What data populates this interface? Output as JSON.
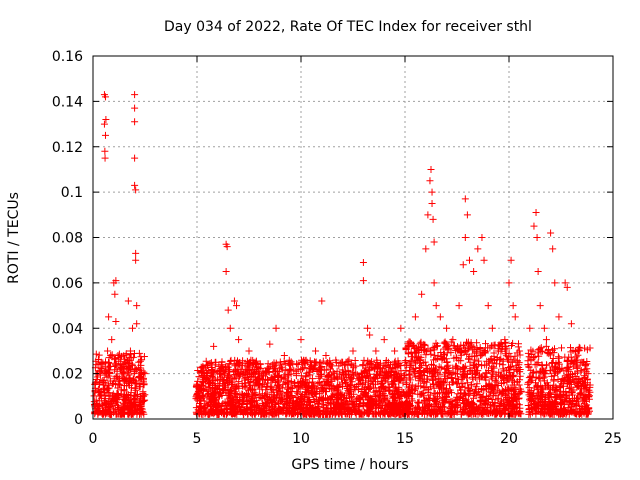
{
  "chart_data": {
    "type": "scatter",
    "title": "Day 034 of 2022, Rate Of TEC Index for receiver sthl",
    "xlabel": "GPS time / hours",
    "ylabel": "ROTI / TECUs",
    "xlim": [
      0,
      25
    ],
    "ylim": [
      0,
      0.16
    ],
    "xticks": [
      0,
      5,
      10,
      15,
      20,
      25
    ],
    "xtick_labels": [
      "0",
      "5",
      "10",
      "15",
      "20",
      "25"
    ],
    "yticks": [
      0,
      0.02,
      0.04,
      0.06,
      0.08,
      0.1,
      0.12,
      0.14,
      0.16
    ],
    "ytick_labels": [
      "0",
      "0.02",
      "0.04",
      "0.06",
      "0.08",
      "0.1",
      "0.12",
      "0.14",
      "0.16"
    ],
    "grid": true,
    "marker": "plus",
    "series": [
      {
        "name": "ROTI",
        "color": "#ff0000",
        "points": [
          [
            0.1,
            0.012
          ],
          [
            0.2,
            0.02
          ],
          [
            0.3,
            0.008
          ],
          [
            0.4,
            0.025
          ],
          [
            0.5,
            0.015
          ],
          [
            0.55,
            0.143
          ],
          [
            0.55,
            0.13
          ],
          [
            0.57,
            0.118
          ],
          [
            0.6,
            0.125
          ],
          [
            0.6,
            0.142
          ],
          [
            0.62,
            0.132
          ],
          [
            0.58,
            0.115
          ],
          [
            0.7,
            0.03
          ],
          [
            0.75,
            0.045
          ],
          [
            0.8,
            0.02
          ],
          [
            0.9,
            0.035
          ],
          [
            1.0,
            0.06
          ],
          [
            1.05,
            0.055
          ],
          [
            1.1,
            0.061
          ],
          [
            1.1,
            0.043
          ],
          [
            1.2,
            0.028
          ],
          [
            1.3,
            0.015
          ],
          [
            1.4,
            0.022
          ],
          [
            1.5,
            0.01
          ],
          [
            1.6,
            0.018
          ],
          [
            1.7,
            0.052
          ],
          [
            1.8,
            0.03
          ],
          [
            1.9,
            0.04
          ],
          [
            2.0,
            0.143
          ],
          [
            2.0,
            0.137
          ],
          [
            2.0,
            0.131
          ],
          [
            2.0,
            0.115
          ],
          [
            2.0,
            0.103
          ],
          [
            2.05,
            0.101
          ],
          [
            2.05,
            0.073
          ],
          [
            2.05,
            0.07
          ],
          [
            2.1,
            0.05
          ],
          [
            2.1,
            0.042
          ],
          [
            2.2,
            0.025
          ],
          [
            2.3,
            0.018
          ],
          [
            2.4,
            0.012
          ],
          [
            2.5,
            0.02
          ],
          [
            5.2,
            0.015
          ],
          [
            5.5,
            0.02
          ],
          [
            5.8,
            0.032
          ],
          [
            6.2,
            0.025
          ],
          [
            6.4,
            0.077
          ],
          [
            6.45,
            0.076
          ],
          [
            6.4,
            0.065
          ],
          [
            6.5,
            0.048
          ],
          [
            6.6,
            0.04
          ],
          [
            6.8,
            0.052
          ],
          [
            6.9,
            0.05
          ],
          [
            7.0,
            0.035
          ],
          [
            7.5,
            0.03
          ],
          [
            8.0,
            0.02
          ],
          [
            8.5,
            0.033
          ],
          [
            8.8,
            0.04
          ],
          [
            9.2,
            0.028
          ],
          [
            9.5,
            0.022
          ],
          [
            10.0,
            0.035
          ],
          [
            10.3,
            0.025
          ],
          [
            10.7,
            0.03
          ],
          [
            11.0,
            0.052
          ],
          [
            11.2,
            0.028
          ],
          [
            11.6,
            0.02
          ],
          [
            12.0,
            0.025
          ],
          [
            12.5,
            0.03
          ],
          [
            13.0,
            0.069
          ],
          [
            13.0,
            0.061
          ],
          [
            13.2,
            0.04
          ],
          [
            13.3,
            0.037
          ],
          [
            13.6,
            0.03
          ],
          [
            14.0,
            0.035
          ],
          [
            14.2,
            0.025
          ],
          [
            14.5,
            0.03
          ],
          [
            14.8,
            0.04
          ],
          [
            15.0,
            0.025
          ],
          [
            15.2,
            0.032
          ],
          [
            15.5,
            0.045
          ],
          [
            15.8,
            0.055
          ],
          [
            16.0,
            0.075
          ],
          [
            16.1,
            0.09
          ],
          [
            16.2,
            0.105
          ],
          [
            16.25,
            0.11
          ],
          [
            16.3,
            0.1
          ],
          [
            16.3,
            0.095
          ],
          [
            16.35,
            0.088
          ],
          [
            16.4,
            0.078
          ],
          [
            16.4,
            0.06
          ],
          [
            16.5,
            0.05
          ],
          [
            16.7,
            0.045
          ],
          [
            17.0,
            0.04
          ],
          [
            17.3,
            0.035
          ],
          [
            17.6,
            0.05
          ],
          [
            17.8,
            0.068
          ],
          [
            17.9,
            0.08
          ],
          [
            17.9,
            0.097
          ],
          [
            18.0,
            0.09
          ],
          [
            18.1,
            0.07
          ],
          [
            18.3,
            0.065
          ],
          [
            18.5,
            0.075
          ],
          [
            18.7,
            0.08
          ],
          [
            18.8,
            0.07
          ],
          [
            19.0,
            0.05
          ],
          [
            19.2,
            0.04
          ],
          [
            19.5,
            0.03
          ],
          [
            19.8,
            0.035
          ],
          [
            20.0,
            0.06
          ],
          [
            20.1,
            0.07
          ],
          [
            20.2,
            0.05
          ],
          [
            20.3,
            0.045
          ],
          [
            20.5,
            0.03
          ],
          [
            21.0,
            0.04
          ],
          [
            21.2,
            0.085
          ],
          [
            21.3,
            0.091
          ],
          [
            21.35,
            0.08
          ],
          [
            21.4,
            0.065
          ],
          [
            21.5,
            0.05
          ],
          [
            21.7,
            0.04
          ],
          [
            21.8,
            0.035
          ],
          [
            22.0,
            0.082
          ],
          [
            22.1,
            0.075
          ],
          [
            22.2,
            0.06
          ],
          [
            22.4,
            0.045
          ],
          [
            22.7,
            0.06
          ],
          [
            22.8,
            0.058
          ],
          [
            23.0,
            0.042
          ],
          [
            23.2,
            0.03
          ],
          [
            23.5,
            0.025
          ],
          [
            23.8,
            0.02
          ],
          [
            23.9,
            0.015
          ]
        ]
      }
    ]
  }
}
